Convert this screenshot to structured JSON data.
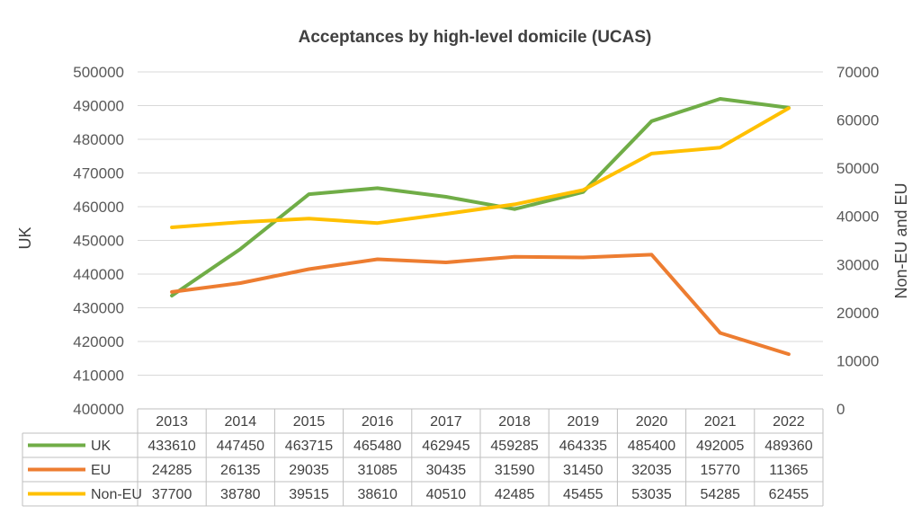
{
  "chart_data": {
    "type": "line",
    "title": "Acceptances by high-level domicile (UCAS)",
    "categories": [
      "2013",
      "2014",
      "2015",
      "2016",
      "2017",
      "2018",
      "2019",
      "2020",
      "2021",
      "2022"
    ],
    "ylabel": "UK",
    "y2label": "Non-EU and EU",
    "ylim": [
      400000,
      500000
    ],
    "y2lim": [
      0,
      70000
    ],
    "yticks": [
      400000,
      410000,
      420000,
      430000,
      440000,
      450000,
      460000,
      470000,
      480000,
      490000,
      500000
    ],
    "y2ticks": [
      0,
      10000,
      20000,
      30000,
      40000,
      50000,
      60000,
      70000
    ],
    "grid": true,
    "legend": "data-table",
    "series": [
      {
        "name": "UK",
        "axis": "left",
        "color": "#70AD47",
        "values": [
          433610,
          447450,
          463715,
          465480,
          462945,
          459285,
          464335,
          485400,
          492005,
          489360
        ]
      },
      {
        "name": "EU",
        "axis": "right",
        "color": "#ED7D31",
        "values": [
          24285,
          26135,
          29035,
          31085,
          30435,
          31590,
          31450,
          32035,
          15770,
          11365
        ]
      },
      {
        "name": "Non-EU",
        "axis": "right",
        "color": "#FFC000",
        "values": [
          37700,
          38780,
          39515,
          38610,
          40510,
          42485,
          45455,
          53035,
          54285,
          62455
        ]
      }
    ]
  }
}
